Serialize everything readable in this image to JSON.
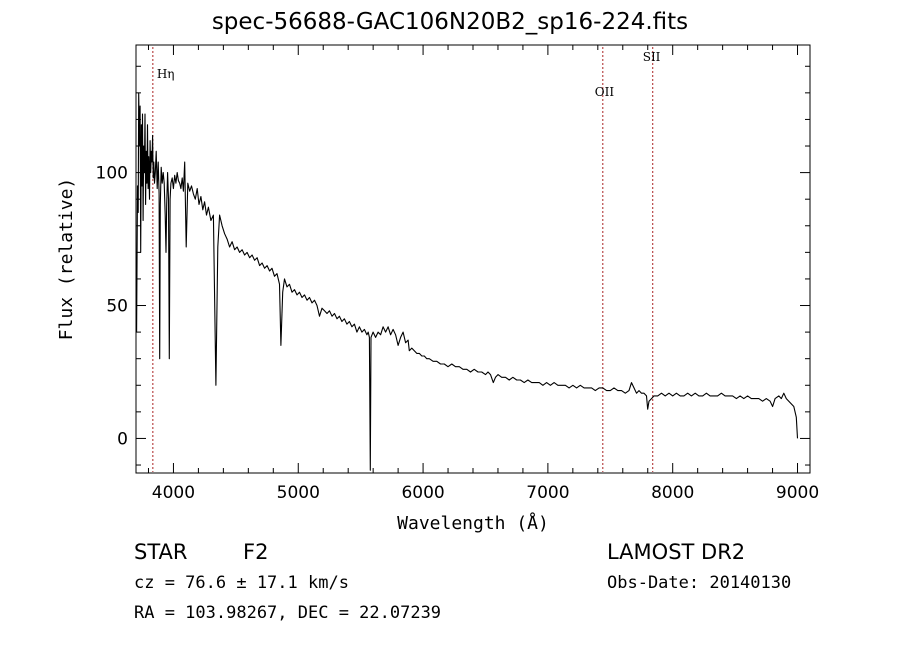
{
  "header": {
    "title": "spec-56688-GAC106N20B2_sp16-224.fits"
  },
  "footer": {
    "class_label": "STAR",
    "subclass_label": "F2",
    "survey_label": "LAMOST DR2",
    "cz_line": "cz = 76.6 ± 17.1 km/s",
    "obs_date_line": "Obs-Date: 20140130",
    "coords_line": "RA = 103.98267, DEC =  22.07239"
  },
  "chart_data": {
    "type": "line",
    "title": "spec-56688-GAC106N20B2_sp16-224.fits",
    "xlabel": "Wavelength (Å)",
    "ylabel": "Flux (relative)",
    "xlim": [
      3700,
      9100
    ],
    "ylim": [
      -13,
      148
    ],
    "x_ticks": [
      4000,
      5000,
      6000,
      7000,
      8000,
      9000
    ],
    "x_tick_labels": [
      "4000",
      "5000",
      "6000",
      "7000",
      "8000",
      "9000"
    ],
    "y_ticks": [
      0,
      50,
      100
    ],
    "y_tick_labels": [
      "0",
      "50",
      "100"
    ],
    "line_color": "#000000",
    "marker_color": "#aa2222",
    "lines": [
      {
        "name": "Hη",
        "wavelength": 3835
      },
      {
        "name": "OII",
        "wavelength": 7440
      },
      {
        "name": "SII",
        "wavelength": 7840
      }
    ],
    "series": [
      {
        "values": [
          [
            3705,
            40
          ],
          [
            3712,
            95
          ],
          [
            3718,
            85
          ],
          [
            3722,
            130
          ],
          [
            3728,
            110
          ],
          [
            3733,
            125
          ],
          [
            3738,
            70
          ],
          [
            3743,
            118
          ],
          [
            3748,
            95
          ],
          [
            3752,
            122
          ],
          [
            3757,
            82
          ],
          [
            3762,
            110
          ],
          [
            3767,
            100
          ],
          [
            3772,
            122
          ],
          [
            3777,
            88
          ],
          [
            3782,
            108
          ],
          [
            3787,
            96
          ],
          [
            3792,
            118
          ],
          [
            3797,
            94
          ],
          [
            3802,
            106
          ],
          [
            3808,
            90
          ],
          [
            3813,
            112
          ],
          [
            3818,
            100
          ],
          [
            3823,
            108
          ],
          [
            3828,
            104
          ],
          [
            3833,
            114
          ],
          [
            3838,
            98
          ],
          [
            3843,
            104
          ],
          [
            3848,
            96
          ],
          [
            3855,
            100
          ],
          [
            3862,
            108
          ],
          [
            3870,
            94
          ],
          [
            3878,
            104
          ],
          [
            3885,
            92
          ],
          [
            3890,
            30
          ],
          [
            3895,
            88
          ],
          [
            3902,
            102
          ],
          [
            3910,
            96
          ],
          [
            3918,
            100
          ],
          [
            3926,
            96
          ],
          [
            3934,
            84
          ],
          [
            3940,
            70
          ],
          [
            3946,
            88
          ],
          [
            3953,
            100
          ],
          [
            3960,
            90
          ],
          [
            3967,
            30
          ],
          [
            3973,
            90
          ],
          [
            3980,
            96
          ],
          [
            3990,
            98
          ],
          [
            4000,
            94
          ],
          [
            4010,
            99
          ],
          [
            4020,
            96
          ],
          [
            4030,
            100
          ],
          [
            4040,
            97
          ],
          [
            4050,
            96
          ],
          [
            4060,
            94
          ],
          [
            4070,
            98
          ],
          [
            4080,
            93
          ],
          [
            4090,
            104
          ],
          [
            4102,
            72
          ],
          [
            4115,
            96
          ],
          [
            4130,
            93
          ],
          [
            4145,
            95
          ],
          [
            4160,
            92
          ],
          [
            4175,
            90
          ],
          [
            4190,
            94
          ],
          [
            4205,
            88
          ],
          [
            4220,
            91
          ],
          [
            4235,
            86
          ],
          [
            4250,
            89
          ],
          [
            4265,
            84
          ],
          [
            4280,
            87
          ],
          [
            4300,
            82
          ],
          [
            4320,
            84
          ],
          [
            4340,
            20
          ],
          [
            4355,
            72
          ],
          [
            4370,
            84
          ],
          [
            4390,
            80
          ],
          [
            4410,
            77
          ],
          [
            4430,
            75
          ],
          [
            4450,
            72
          ],
          [
            4470,
            74
          ],
          [
            4490,
            71
          ],
          [
            4510,
            72
          ],
          [
            4530,
            70
          ],
          [
            4550,
            71
          ],
          [
            4570,
            69
          ],
          [
            4590,
            70
          ],
          [
            4610,
            68
          ],
          [
            4630,
            69
          ],
          [
            4650,
            67
          ],
          [
            4670,
            68
          ],
          [
            4690,
            65
          ],
          [
            4710,
            66
          ],
          [
            4730,
            64
          ],
          [
            4750,
            65
          ],
          [
            4770,
            63
          ],
          [
            4790,
            64
          ],
          [
            4810,
            61
          ],
          [
            4830,
            62
          ],
          [
            4850,
            58
          ],
          [
            4861,
            35
          ],
          [
            4875,
            55
          ],
          [
            4890,
            60
          ],
          [
            4910,
            57
          ],
          [
            4930,
            58
          ],
          [
            4950,
            55
          ],
          [
            4970,
            56
          ],
          [
            4990,
            54
          ],
          [
            5010,
            55
          ],
          [
            5030,
            53
          ],
          [
            5050,
            54
          ],
          [
            5070,
            52
          ],
          [
            5090,
            53
          ],
          [
            5110,
            51
          ],
          [
            5130,
            52
          ],
          [
            5150,
            50
          ],
          [
            5170,
            46
          ],
          [
            5190,
            49
          ],
          [
            5210,
            48
          ],
          [
            5230,
            47
          ],
          [
            5250,
            48
          ],
          [
            5270,
            46
          ],
          [
            5290,
            47
          ],
          [
            5310,
            45
          ],
          [
            5330,
            46
          ],
          [
            5350,
            44
          ],
          [
            5370,
            45
          ],
          [
            5390,
            43
          ],
          [
            5410,
            44
          ],
          [
            5430,
            42
          ],
          [
            5450,
            43
          ],
          [
            5470,
            40
          ],
          [
            5490,
            42
          ],
          [
            5510,
            40
          ],
          [
            5530,
            41
          ],
          [
            5550,
            39
          ],
          [
            5560,
            40
          ],
          [
            5570,
            38
          ],
          [
            5577,
            -12
          ],
          [
            5583,
            38
          ],
          [
            5600,
            40
          ],
          [
            5620,
            38
          ],
          [
            5640,
            40
          ],
          [
            5660,
            39
          ],
          [
            5680,
            42
          ],
          [
            5700,
            40
          ],
          [
            5720,
            42
          ],
          [
            5740,
            39
          ],
          [
            5760,
            41
          ],
          [
            5780,
            39
          ],
          [
            5800,
            35
          ],
          [
            5820,
            38
          ],
          [
            5840,
            40
          ],
          [
            5860,
            36
          ],
          [
            5880,
            37
          ],
          [
            5890,
            33
          ],
          [
            5910,
            34
          ],
          [
            5930,
            33
          ],
          [
            5950,
            32
          ],
          [
            5970,
            32
          ],
          [
            5990,
            31
          ],
          [
            6010,
            31
          ],
          [
            6030,
            30
          ],
          [
            6050,
            30
          ],
          [
            6080,
            29
          ],
          [
            6110,
            29
          ],
          [
            6140,
            28
          ],
          [
            6170,
            28
          ],
          [
            6200,
            27
          ],
          [
            6230,
            28
          ],
          [
            6260,
            27
          ],
          [
            6290,
            27
          ],
          [
            6320,
            26
          ],
          [
            6350,
            26
          ],
          [
            6380,
            25
          ],
          [
            6410,
            26
          ],
          [
            6440,
            25
          ],
          [
            6470,
            25
          ],
          [
            6500,
            24
          ],
          [
            6520,
            25
          ],
          [
            6540,
            24
          ],
          [
            6563,
            21
          ],
          [
            6580,
            23
          ],
          [
            6600,
            24
          ],
          [
            6630,
            23
          ],
          [
            6660,
            23
          ],
          [
            6690,
            22
          ],
          [
            6720,
            23
          ],
          [
            6750,
            22
          ],
          [
            6780,
            22
          ],
          [
            6810,
            21
          ],
          [
            6840,
            22
          ],
          [
            6870,
            21
          ],
          [
            6900,
            21
          ],
          [
            6930,
            21
          ],
          [
            6960,
            20
          ],
          [
            6990,
            21
          ],
          [
            7020,
            20
          ],
          [
            7050,
            21
          ],
          [
            7080,
            20
          ],
          [
            7110,
            20
          ],
          [
            7140,
            20
          ],
          [
            7170,
            19
          ],
          [
            7200,
            20
          ],
          [
            7230,
            19
          ],
          [
            7260,
            20
          ],
          [
            7290,
            19
          ],
          [
            7320,
            19
          ],
          [
            7350,
            19
          ],
          [
            7380,
            18
          ],
          [
            7410,
            19
          ],
          [
            7440,
            19
          ],
          [
            7470,
            18
          ],
          [
            7500,
            18
          ],
          [
            7530,
            19
          ],
          [
            7560,
            18
          ],
          [
            7590,
            18
          ],
          [
            7620,
            17
          ],
          [
            7650,
            18
          ],
          [
            7670,
            21
          ],
          [
            7690,
            19
          ],
          [
            7710,
            17
          ],
          [
            7730,
            18
          ],
          [
            7750,
            17
          ],
          [
            7770,
            17
          ],
          [
            7790,
            16
          ],
          [
            7800,
            11
          ],
          [
            7810,
            14
          ],
          [
            7830,
            15
          ],
          [
            7850,
            16
          ],
          [
            7880,
            16
          ],
          [
            7910,
            17
          ],
          [
            7940,
            16
          ],
          [
            7970,
            17
          ],
          [
            8000,
            16
          ],
          [
            8030,
            17
          ],
          [
            8060,
            16
          ],
          [
            8090,
            16
          ],
          [
            8120,
            17
          ],
          [
            8150,
            16
          ],
          [
            8180,
            17
          ],
          [
            8210,
            16
          ],
          [
            8240,
            16
          ],
          [
            8270,
            17
          ],
          [
            8300,
            16
          ],
          [
            8330,
            16
          ],
          [
            8360,
            16
          ],
          [
            8390,
            17
          ],
          [
            8420,
            16
          ],
          [
            8450,
            16
          ],
          [
            8480,
            16
          ],
          [
            8510,
            15
          ],
          [
            8540,
            16
          ],
          [
            8570,
            15
          ],
          [
            8600,
            16
          ],
          [
            8630,
            15
          ],
          [
            8660,
            15
          ],
          [
            8690,
            15
          ],
          [
            8720,
            14
          ],
          [
            8750,
            15
          ],
          [
            8780,
            14
          ],
          [
            8800,
            12
          ],
          [
            8820,
            15
          ],
          [
            8850,
            16
          ],
          [
            8870,
            15
          ],
          [
            8890,
            17
          ],
          [
            8910,
            15
          ],
          [
            8930,
            14
          ],
          [
            8950,
            13
          ],
          [
            8970,
            12
          ],
          [
            8990,
            8
          ],
          [
            9000,
            0
          ]
        ]
      }
    ]
  }
}
